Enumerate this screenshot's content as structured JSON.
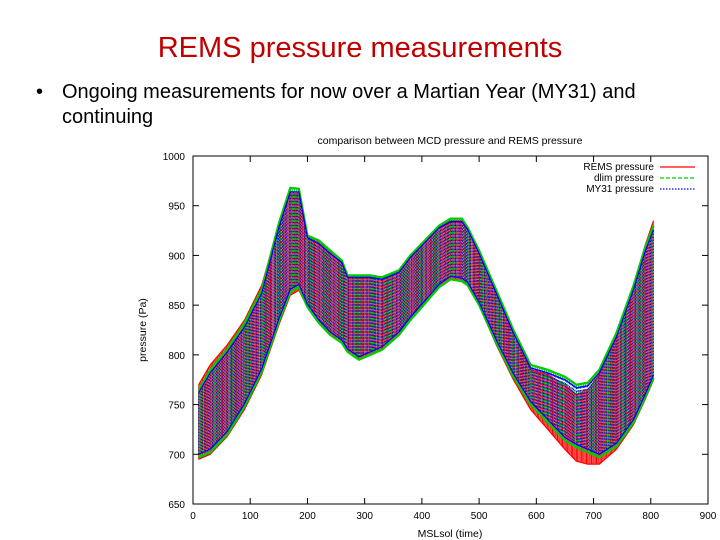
{
  "slide": {
    "title": "REMS pressure measurements",
    "bullet_symbol": "•",
    "bullet_text": "Ongoing measurements for now over a Martian Year (MY31) and continuing"
  },
  "chart_data": {
    "type": "line",
    "title": "comparison between MCD pressure and REMS pressure",
    "xlabel": "MSLsol (time)",
    "ylabel": "pressure (Pa)",
    "xlim": [
      0,
      900
    ],
    "ylim": [
      650,
      1000
    ],
    "x_ticks": [
      0,
      100,
      200,
      300,
      400,
      500,
      600,
      700,
      800,
      900
    ],
    "y_ticks": [
      650,
      700,
      750,
      800,
      850,
      900,
      950,
      1000
    ],
    "grid": false,
    "legend_position": "top-right",
    "colors": {
      "rems": "#ff0000",
      "dlim": "#00cc00",
      "my31": "#0000ff",
      "interp": "#404040"
    },
    "series": [
      {
        "name": "REMS pressure",
        "style": "solid",
        "x": [
          10,
          30,
          60,
          90,
          120,
          150,
          170,
          185,
          200,
          220,
          240,
          260,
          270,
          290,
          310,
          330,
          360,
          380,
          400,
          430,
          450,
          470,
          480,
          500,
          530,
          560,
          590,
          620,
          650,
          670,
          690,
          710,
          740,
          770,
          790,
          805
        ],
        "upper": [
          770,
          790,
          810,
          835,
          870,
          930,
          962,
          962,
          920,
          915,
          905,
          895,
          880,
          880,
          880,
          878,
          885,
          900,
          912,
          930,
          935,
          935,
          928,
          905,
          865,
          825,
          785,
          780,
          770,
          760,
          765,
          780,
          820,
          870,
          910,
          935
        ],
        "lower": [
          695,
          700,
          718,
          745,
          780,
          830,
          860,
          865,
          848,
          832,
          820,
          812,
          803,
          795,
          800,
          805,
          820,
          835,
          848,
          868,
          876,
          874,
          870,
          850,
          810,
          775,
          745,
          725,
          705,
          693,
          690,
          690,
          705,
          730,
          755,
          775
        ]
      },
      {
        "name": "dlim pressure",
        "style": "dashed",
        "x": [
          10,
          30,
          60,
          90,
          120,
          150,
          170,
          185,
          200,
          220,
          240,
          260,
          270,
          290,
          310,
          330,
          360,
          380,
          400,
          430,
          450,
          470,
          480,
          500,
          530,
          560,
          590,
          620,
          650,
          670,
          690,
          710,
          740,
          770,
          790,
          805
        ],
        "upper": [
          765,
          785,
          806,
          832,
          866,
          932,
          968,
          967,
          920,
          915,
          905,
          895,
          880,
          880,
          880,
          878,
          885,
          900,
          912,
          930,
          937,
          937,
          928,
          905,
          865,
          825,
          790,
          785,
          778,
          770,
          772,
          785,
          822,
          870,
          908,
          930
        ],
        "lower": [
          697,
          702,
          720,
          748,
          783,
          833,
          863,
          868,
          848,
          832,
          820,
          812,
          803,
          795,
          800,
          805,
          820,
          835,
          848,
          868,
          876,
          874,
          870,
          850,
          812,
          778,
          750,
          732,
          714,
          707,
          702,
          697,
          708,
          732,
          757,
          777
        ]
      },
      {
        "name": "MY31 pressure",
        "style": "dotted",
        "x": [
          10,
          30,
          60,
          90,
          120,
          150,
          170,
          185,
          200,
          220,
          240,
          260,
          270,
          290,
          310,
          330,
          360,
          380,
          400,
          430,
          450,
          470,
          480,
          500,
          530,
          560,
          590,
          620,
          650,
          670,
          690,
          710,
          740,
          770,
          790,
          805
        ],
        "upper": [
          762,
          782,
          803,
          828,
          862,
          928,
          964,
          964,
          918,
          912,
          902,
          893,
          878,
          878,
          878,
          876,
          883,
          898,
          910,
          928,
          934,
          934,
          926,
          902,
          862,
          822,
          787,
          782,
          775,
          767,
          769,
          782,
          818,
          866,
          904,
          926
        ],
        "lower": [
          700,
          705,
          723,
          751,
          786,
          836,
          866,
          871,
          851,
          835,
          823,
          815,
          806,
          798,
          803,
          808,
          823,
          838,
          851,
          871,
          879,
          877,
          873,
          853,
          815,
          781,
          753,
          735,
          717,
          710,
          705,
          700,
          711,
          735,
          760,
          780
        ]
      }
    ]
  }
}
